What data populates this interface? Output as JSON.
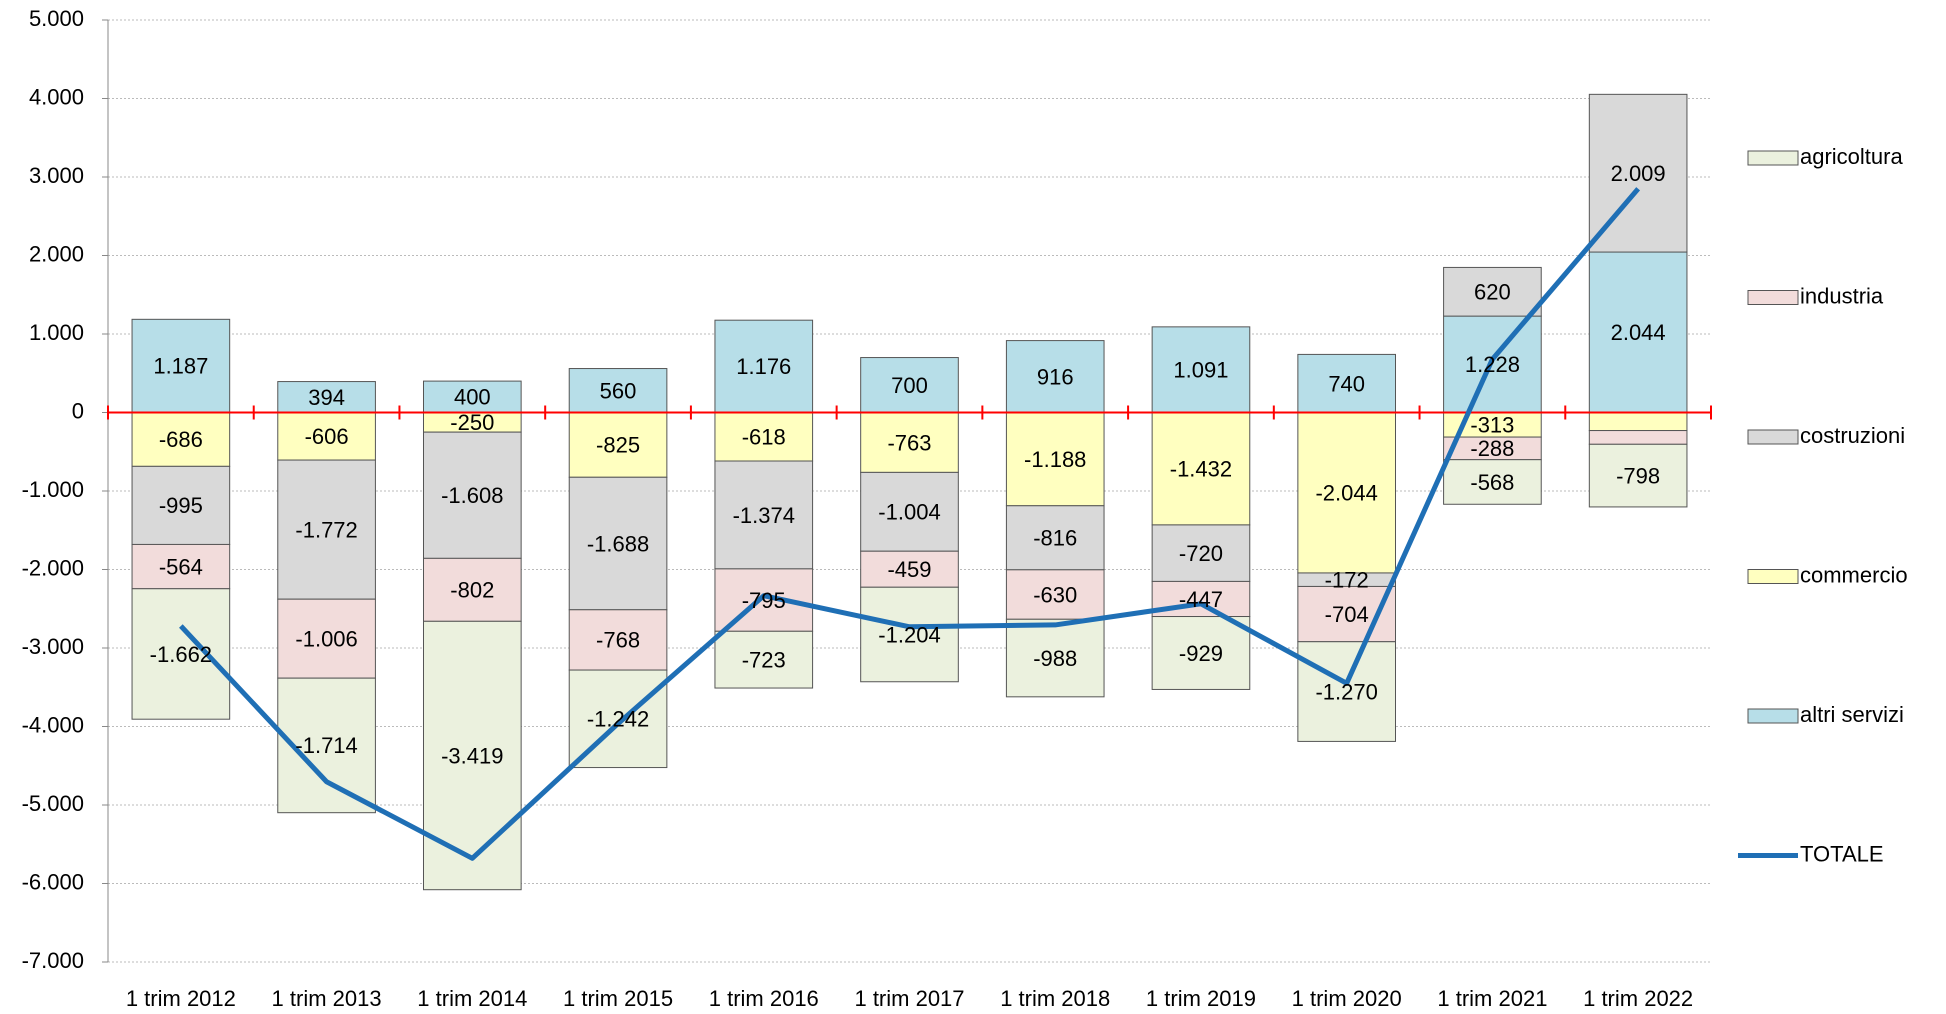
{
  "chart_data": {
    "type": "stacked-bar-line",
    "categories": [
      "1 trim 2012",
      "1 trim 2013",
      "1 trim 2014",
      "1 trim 2015",
      "1 trim 2016",
      "1 trim 2017",
      "1 trim 2018",
      "1 trim 2019",
      "1 trim 2020",
      "1 trim 2021",
      "1 trim 2022"
    ],
    "series": [
      {
        "name": "agricoltura",
        "type": "bar",
        "color": "#ebf1de",
        "values": [
          -1662,
          -1714,
          -3419,
          -1242,
          -723,
          -1204,
          -988,
          -929,
          -1270,
          -568,
          -798
        ],
        "value_labels": [
          "-1.662",
          "-1.714",
          "-3.419",
          "-1.242",
          "-723",
          "-1.204",
          "-988",
          "-929",
          "-1.270",
          "-568",
          "-798"
        ]
      },
      {
        "name": "industria",
        "type": "bar",
        "color": "#f2dcdb",
        "values": [
          -564,
          -1006,
          -802,
          -768,
          -795,
          -459,
          -630,
          -447,
          -704,
          -288,
          -175
        ],
        "value_labels": [
          "-564",
          "-1.006",
          "-802",
          "-768",
          "-795",
          "-459",
          "-630",
          "-447",
          "-704",
          "-288",
          null
        ]
      },
      {
        "name": "costruzioni",
        "type": "bar",
        "color": "#d9d9d9",
        "values": [
          -995,
          -1772,
          -1608,
          -1688,
          -1374,
          -1004,
          -816,
          -720,
          -172,
          620,
          2009
        ],
        "value_labels": [
          "-995",
          "-1.772",
          "-1.608",
          "-1.688",
          "-1.374",
          "-1.004",
          "-816",
          "-720",
          "-172",
          "620",
          "2.009"
        ]
      },
      {
        "name": "commercio",
        "type": "bar",
        "color": "#ffffc0",
        "values": [
          -686,
          -606,
          -250,
          -825,
          -618,
          -763,
          -1188,
          -1432,
          -2044,
          -313,
          -230
        ],
        "value_labels": [
          "-686",
          "-606",
          "-250",
          "-825",
          "-618",
          "-763",
          "-1.188",
          "-1.432",
          "-2.044",
          "-313",
          null
        ]
      },
      {
        "name": "altri servizi",
        "type": "bar",
        "color": "#b7dee8",
        "values": [
          1187,
          394,
          400,
          560,
          1176,
          700,
          916,
          1091,
          740,
          1228,
          2044
        ],
        "value_labels": [
          "1.187",
          "394",
          "400",
          "560",
          "1.176",
          "700",
          "916",
          "1.091",
          "740",
          "1.228",
          "2.044"
        ]
      },
      {
        "name": "TOTALE",
        "type": "line",
        "color": "#1f6fb5",
        "values": [
          -2720,
          -4704,
          -5679,
          -3963,
          -2334,
          -2730,
          -2706,
          -2437,
          -3450,
          679,
          2850
        ]
      }
    ],
    "ylim": [
      -7000,
      5000
    ],
    "yticks": [
      {
        "value": -7000,
        "label": "-7.000"
      },
      {
        "value": -6000,
        "label": "-6.000"
      },
      {
        "value": -5000,
        "label": "-5.000"
      },
      {
        "value": -4000,
        "label": "-4.000"
      },
      {
        "value": -3000,
        "label": "-3.000"
      },
      {
        "value": -2000,
        "label": "-2.000"
      },
      {
        "value": -1000,
        "label": "-1.000"
      },
      0,
      {
        "value": 1000,
        "label": "1.000"
      },
      {
        "value": 2000,
        "label": "2.000"
      },
      {
        "value": 3000,
        "label": "3.000"
      },
      {
        "value": 4000,
        "label": "4.000"
      },
      {
        "value": 5000,
        "label": "5.000"
      }
    ],
    "grid": true,
    "legend": "right"
  }
}
